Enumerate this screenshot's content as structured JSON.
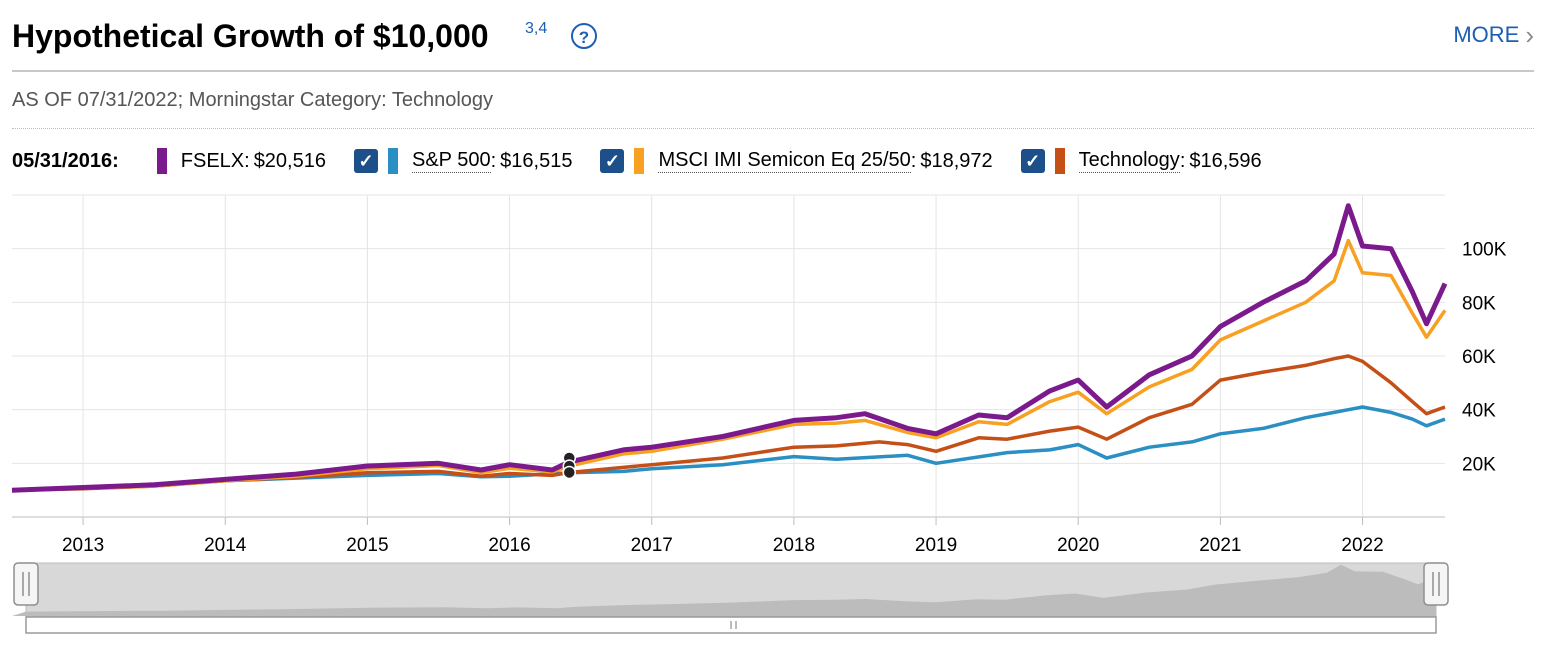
{
  "header": {
    "title": "Hypothetical Growth of $10,000",
    "footnote": "3,4",
    "help_icon": "?",
    "more_label": "MORE",
    "more_icon": "chevron-right-icon"
  },
  "as_of": "AS OF 07/31/2022; Morningstar Category: Technology",
  "legend": {
    "date": "05/31/2016:",
    "items": [
      {
        "name": "FSELX",
        "value": "$20,516",
        "color": "#7b1a8c",
        "checkbox": false
      },
      {
        "name": "S&P 500",
        "value": "$16,515",
        "color": "#2a8fc2",
        "checkbox": true
      },
      {
        "name": "MSCI IMI Semicon Eq 25/50",
        "value": "$18,972",
        "color": "#f7a021",
        "checkbox": true
      },
      {
        "name": "Technology",
        "value": "$16,596",
        "color": "#c44f17",
        "checkbox": true
      }
    ]
  },
  "chart_data": {
    "type": "line",
    "title": "Hypothetical Growth of $10,000",
    "x_ticks": [
      "2013",
      "2014",
      "2015",
      "2016",
      "2017",
      "2018",
      "2019",
      "2020",
      "2021",
      "2022"
    ],
    "y_ticks": [
      "20K",
      "40K",
      "60K",
      "80K",
      "100K"
    ],
    "ylim": [
      0,
      120000
    ],
    "grid": true,
    "highlight_date": "05/31/2016",
    "series": [
      {
        "name": "FSELX",
        "color": "#7b1a8c",
        "points": [
          [
            2012.5,
            10000
          ],
          [
            2013.0,
            11000
          ],
          [
            2013.5,
            12000
          ],
          [
            2014.0,
            14000
          ],
          [
            2014.5,
            16000
          ],
          [
            2015.0,
            19000
          ],
          [
            2015.5,
            20000
          ],
          [
            2015.8,
            17500
          ],
          [
            2016.0,
            19500
          ],
          [
            2016.3,
            17500
          ],
          [
            2016.42,
            20516
          ],
          [
            2016.8,
            25000
          ],
          [
            2017.0,
            26000
          ],
          [
            2017.5,
            30000
          ],
          [
            2018.0,
            36000
          ],
          [
            2018.3,
            37000
          ],
          [
            2018.5,
            38500
          ],
          [
            2018.8,
            33000
          ],
          [
            2019.0,
            31000
          ],
          [
            2019.3,
            38000
          ],
          [
            2019.5,
            37000
          ],
          [
            2019.8,
            47000
          ],
          [
            2020.0,
            51000
          ],
          [
            2020.2,
            41000
          ],
          [
            2020.5,
            53000
          ],
          [
            2020.8,
            60000
          ],
          [
            2021.0,
            71000
          ],
          [
            2021.3,
            80000
          ],
          [
            2021.6,
            88000
          ],
          [
            2021.8,
            98000
          ],
          [
            2021.9,
            116000
          ],
          [
            2022.0,
            101000
          ],
          [
            2022.2,
            100000
          ],
          [
            2022.35,
            84000
          ],
          [
            2022.45,
            72000
          ],
          [
            2022.58,
            87000
          ]
        ]
      },
      {
        "name": "S&P 500",
        "color": "#2a8fc2",
        "points": [
          [
            2012.5,
            10000
          ],
          [
            2013.0,
            10900
          ],
          [
            2013.5,
            11800
          ],
          [
            2014.0,
            13500
          ],
          [
            2014.5,
            14500
          ],
          [
            2015.0,
            15500
          ],
          [
            2015.5,
            16200
          ],
          [
            2015.8,
            15000
          ],
          [
            2016.0,
            15200
          ],
          [
            2016.42,
            16515
          ],
          [
            2016.8,
            17000
          ],
          [
            2017.0,
            18000
          ],
          [
            2017.5,
            19500
          ],
          [
            2018.0,
            22500
          ],
          [
            2018.3,
            21500
          ],
          [
            2018.8,
            23000
          ],
          [
            2019.0,
            20000
          ],
          [
            2019.5,
            24000
          ],
          [
            2019.8,
            25000
          ],
          [
            2020.0,
            27000
          ],
          [
            2020.2,
            22000
          ],
          [
            2020.5,
            26000
          ],
          [
            2020.8,
            28000
          ],
          [
            2021.0,
            31000
          ],
          [
            2021.3,
            33000
          ],
          [
            2021.6,
            37000
          ],
          [
            2021.8,
            39000
          ],
          [
            2021.9,
            40000
          ],
          [
            2022.0,
            41000
          ],
          [
            2022.2,
            39000
          ],
          [
            2022.35,
            36500
          ],
          [
            2022.45,
            34000
          ],
          [
            2022.58,
            36500
          ]
        ]
      },
      {
        "name": "MSCI IMI Semicon Eq 25/50",
        "color": "#f7a021",
        "points": [
          [
            2012.5,
            10000
          ],
          [
            2013.0,
            10700
          ],
          [
            2013.5,
            11500
          ],
          [
            2014.0,
            13500
          ],
          [
            2014.5,
            15200
          ],
          [
            2015.0,
            18000
          ],
          [
            2015.5,
            19200
          ],
          [
            2015.8,
            16500
          ],
          [
            2016.0,
            18200
          ],
          [
            2016.3,
            16800
          ],
          [
            2016.42,
            18972
          ],
          [
            2016.8,
            23500
          ],
          [
            2017.0,
            24500
          ],
          [
            2017.5,
            29000
          ],
          [
            2018.0,
            34500
          ],
          [
            2018.3,
            35000
          ],
          [
            2018.5,
            36000
          ],
          [
            2018.8,
            31500
          ],
          [
            2019.0,
            29500
          ],
          [
            2019.3,
            35500
          ],
          [
            2019.5,
            34500
          ],
          [
            2019.8,
            43000
          ],
          [
            2020.0,
            46500
          ],
          [
            2020.2,
            38500
          ],
          [
            2020.5,
            48500
          ],
          [
            2020.8,
            55000
          ],
          [
            2021.0,
            66000
          ],
          [
            2021.3,
            73000
          ],
          [
            2021.6,
            80000
          ],
          [
            2021.8,
            88000
          ],
          [
            2021.9,
            103000
          ],
          [
            2022.0,
            91000
          ],
          [
            2022.2,
            90000
          ],
          [
            2022.35,
            76000
          ],
          [
            2022.45,
            67000
          ],
          [
            2022.58,
            77000
          ]
        ]
      },
      {
        "name": "Technology",
        "color": "#c44f17",
        "points": [
          [
            2012.5,
            10000
          ],
          [
            2013.0,
            10500
          ],
          [
            2013.5,
            11500
          ],
          [
            2014.0,
            13500
          ],
          [
            2014.5,
            14800
          ],
          [
            2015.0,
            16500
          ],
          [
            2015.5,
            17000
          ],
          [
            2015.8,
            15200
          ],
          [
            2016.0,
            16200
          ],
          [
            2016.3,
            15500
          ],
          [
            2016.42,
            16596
          ],
          [
            2016.8,
            18500
          ],
          [
            2017.0,
            19500
          ],
          [
            2017.5,
            22000
          ],
          [
            2018.0,
            26000
          ],
          [
            2018.3,
            26500
          ],
          [
            2018.6,
            28000
          ],
          [
            2018.8,
            27000
          ],
          [
            2019.0,
            24500
          ],
          [
            2019.3,
            29500
          ],
          [
            2019.5,
            29000
          ],
          [
            2019.8,
            32000
          ],
          [
            2020.0,
            33500
          ],
          [
            2020.2,
            29000
          ],
          [
            2020.5,
            37000
          ],
          [
            2020.8,
            42000
          ],
          [
            2021.0,
            51000
          ],
          [
            2021.3,
            54000
          ],
          [
            2021.6,
            56500
          ],
          [
            2021.8,
            59000
          ],
          [
            2021.9,
            60000
          ],
          [
            2022.0,
            58000
          ],
          [
            2022.2,
            50000
          ],
          [
            2022.35,
            43000
          ],
          [
            2022.45,
            38500
          ],
          [
            2022.58,
            41000
          ]
        ]
      }
    ]
  }
}
